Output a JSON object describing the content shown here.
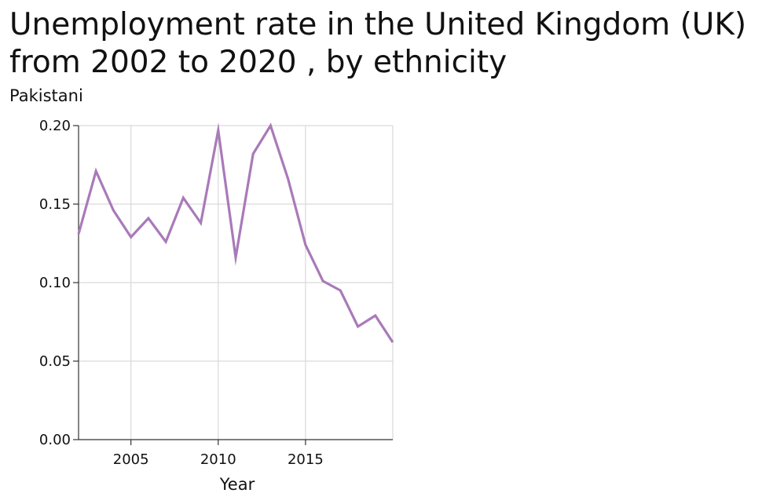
{
  "chart_data": {
    "type": "line",
    "title": "Unemployment rate in the United Kingdom (UK) from 2002 to 2020 , by ethnicity",
    "xlabel": "Year",
    "ylabel": "Pakistani",
    "xlim": [
      2002,
      2020
    ],
    "ylim": [
      0,
      0.2
    ],
    "xticks": [
      2005,
      2010,
      2015
    ],
    "xtick_labels": [
      "2005",
      "2010",
      "2015"
    ],
    "yticks": [
      0,
      0.05,
      0.1,
      0.15,
      0.2
    ],
    "ytick_labels": [
      "0.00",
      "0.05",
      "0.10",
      "0.15",
      "0.20"
    ],
    "grid": true,
    "line_color": "#a97ab9",
    "grid_color": "#d9d9d9",
    "x": [
      2002,
      2003,
      2004,
      2005,
      2006,
      2007,
      2008,
      2009,
      2010,
      2011,
      2012,
      2013,
      2014,
      2015,
      2016,
      2017,
      2018,
      2019,
      2020
    ],
    "values": [
      0.131,
      0.171,
      0.146,
      0.129,
      0.141,
      0.126,
      0.154,
      0.138,
      0.197,
      0.116,
      0.182,
      0.2,
      0.166,
      0.124,
      0.101,
      0.095,
      0.072,
      0.079,
      0.062
    ]
  }
}
